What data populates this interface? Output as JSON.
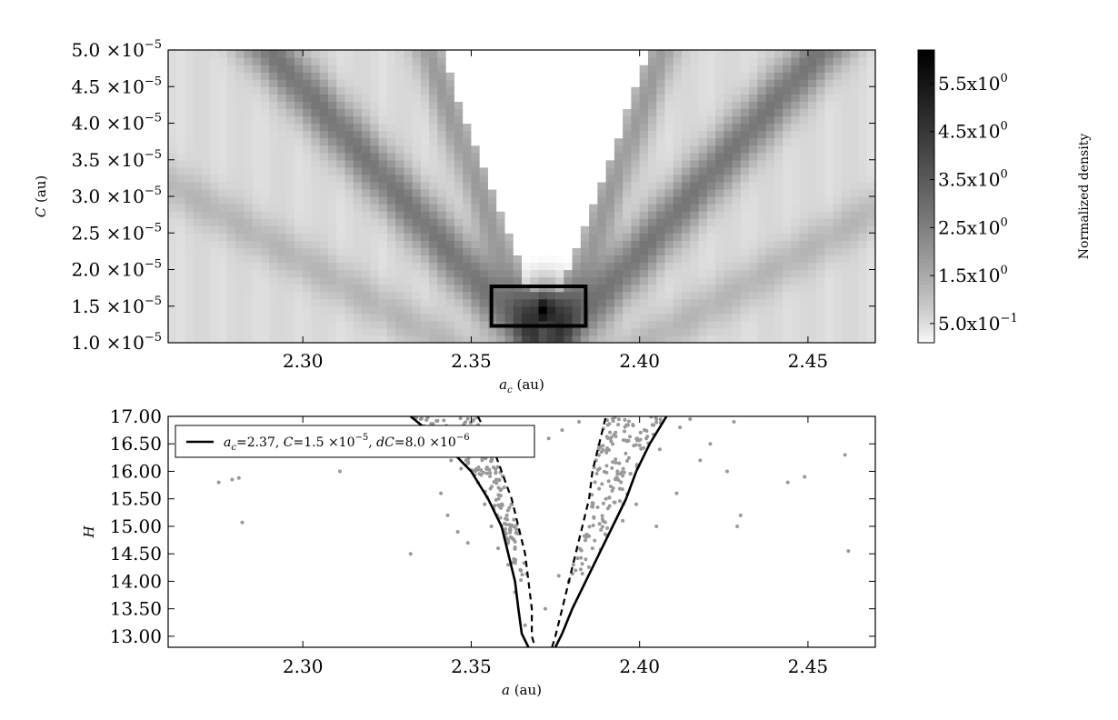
{
  "chart_data": [
    {
      "type": "heatmap",
      "xlabel": "a_c (au)",
      "ylabel": "C (au)",
      "xlim": [
        2.26,
        2.47
      ],
      "ylim": [
        1e-05,
        5e-05
      ],
      "x_ticks": [
        {
          "value": 2.3,
          "label": "2.30"
        },
        {
          "value": 2.35,
          "label": "2.35"
        },
        {
          "value": 2.4,
          "label": "2.40"
        },
        {
          "value": 2.45,
          "label": "2.45"
        }
      ],
      "y_ticks": [
        {
          "value": 1e-05,
          "mantissa": "1.0",
          "exp": "−5"
        },
        {
          "value": 1.5e-05,
          "mantissa": "1.5",
          "exp": "−5"
        },
        {
          "value": 2e-05,
          "mantissa": "2.0",
          "exp": "−5"
        },
        {
          "value": 2.5e-05,
          "mantissa": "2.5",
          "exp": "−5"
        },
        {
          "value": 3e-05,
          "mantissa": "3.0",
          "exp": "−5"
        },
        {
          "value": 3.5e-05,
          "mantissa": "3.5",
          "exp": "−5"
        },
        {
          "value": 4e-05,
          "mantissa": "4.0",
          "exp": "−5"
        },
        {
          "value": 4.5e-05,
          "mantissa": "4.5",
          "exp": "−5"
        },
        {
          "value": 5e-05,
          "mantissa": "5.0",
          "exp": "−5"
        }
      ],
      "colormap": "gray_r",
      "colorbar": {
        "label": "Normalized density",
        "range": [
          0.1,
          6.2
        ],
        "ticks": [
          {
            "value": 0.5,
            "mantissa": "5.0",
            "exp": "−1"
          },
          {
            "value": 1.5,
            "mantissa": "1.5",
            "exp": "0"
          },
          {
            "value": 2.5,
            "mantissa": "2.5",
            "exp": "0"
          },
          {
            "value": 3.5,
            "mantissa": "3.5",
            "exp": "0"
          },
          {
            "value": 4.5,
            "mantissa": "4.5",
            "exp": "0"
          },
          {
            "value": 5.5,
            "mantissa": "5.5",
            "exp": "0"
          }
        ]
      },
      "features": {
        "center_a": 2.372,
        "dense_peak": {
          "a": 2.372,
          "C": 1.45e-05,
          "value": 6.0
        },
        "selection_box": {
          "a": [
            2.356,
            2.384
          ],
          "C": [
            1.23e-05,
            1.77e-05
          ]
        }
      }
    },
    {
      "type": "scatter",
      "xlabel": "a (au)",
      "ylabel": "H",
      "xlim": [
        2.26,
        2.47
      ],
      "ylim": [
        12.8,
        17.0
      ],
      "x_ticks": [
        {
          "value": 2.3,
          "label": "2.30"
        },
        {
          "value": 2.35,
          "label": "2.35"
        },
        {
          "value": 2.4,
          "label": "2.40"
        },
        {
          "value": 2.45,
          "label": "2.45"
        }
      ],
      "y_ticks": [
        {
          "value": 13.0,
          "label": "13.00"
        },
        {
          "value": 13.5,
          "label": "13.50"
        },
        {
          "value": 14.0,
          "label": "14.00"
        },
        {
          "value": 14.5,
          "label": "14.50"
        },
        {
          "value": 15.0,
          "label": "15.00"
        },
        {
          "value": 15.5,
          "label": "15.50"
        },
        {
          "value": 16.0,
          "label": "16.00"
        },
        {
          "value": 16.5,
          "label": "16.50"
        },
        {
          "value": 17.0,
          "label": "17.00"
        }
      ],
      "legend": {
        "position": "upper-left",
        "entry": {
          "sym1": "a",
          "sub1": "c",
          "v1": "=2.37, ",
          "sym2": "C",
          "v2": "=1.5 ×10",
          "e2": "−5",
          "sep": ", ",
          "sym3": "dC",
          "v3": "=8.0 ×10",
          "e3": "−6"
        }
      },
      "curves": {
        "center": 2.37,
        "C": 1.5e-05,
        "dC": 8e-06,
        "solid_left": [
          [
            2.332,
            17.0
          ],
          [
            2.342,
            16.5
          ],
          [
            2.35,
            16.0
          ],
          [
            2.355,
            15.5
          ],
          [
            2.359,
            15.0
          ],
          [
            2.361,
            14.5
          ],
          [
            2.363,
            14.0
          ],
          [
            2.364,
            13.5
          ],
          [
            2.365,
            13.05
          ],
          [
            2.367,
            12.8
          ]
        ],
        "solid_right": [
          [
            2.375,
            12.8
          ],
          [
            2.377,
            13.05
          ],
          [
            2.38,
            13.5
          ],
          [
            2.384,
            14.0
          ],
          [
            2.388,
            14.5
          ],
          [
            2.392,
            15.0
          ],
          [
            2.396,
            15.5
          ],
          [
            2.399,
            16.0
          ],
          [
            2.403,
            16.5
          ],
          [
            2.408,
            17.0
          ]
        ],
        "dashed_left": [
          [
            2.352,
            17.0
          ],
          [
            2.356,
            16.5
          ],
          [
            2.359,
            16.0
          ],
          [
            2.362,
            15.5
          ],
          [
            2.364,
            15.0
          ],
          [
            2.366,
            14.5
          ],
          [
            2.367,
            14.0
          ],
          [
            2.368,
            13.5
          ],
          [
            2.368,
            13.0
          ],
          [
            2.369,
            12.8
          ]
        ],
        "dashed_right": [
          [
            2.374,
            12.8
          ],
          [
            2.375,
            13.0
          ],
          [
            2.377,
            13.5
          ],
          [
            2.379,
            14.0
          ],
          [
            2.381,
            14.5
          ],
          [
            2.383,
            15.0
          ],
          [
            2.385,
            15.5
          ],
          [
            2.386,
            16.0
          ],
          [
            2.388,
            16.5
          ],
          [
            2.39,
            17.0
          ]
        ]
      },
      "points": [
        [
          2.275,
          15.8
        ],
        [
          2.279,
          15.85
        ],
        [
          2.281,
          15.88
        ],
        [
          2.282,
          15.07
        ],
        [
          2.311,
          16.0
        ],
        [
          2.332,
          14.5
        ],
        [
          2.339,
          16.3
        ],
        [
          2.341,
          15.6
        ],
        [
          2.343,
          15.2
        ],
        [
          2.346,
          14.9
        ],
        [
          2.349,
          14.7
        ],
        [
          2.352,
          15.8
        ],
        [
          2.354,
          15.4
        ],
        [
          2.356,
          15.0
        ],
        [
          2.358,
          14.6
        ],
        [
          2.361,
          14.3
        ],
        [
          2.363,
          13.8
        ],
        [
          2.366,
          13.2
        ],
        [
          2.372,
          13.5
        ],
        [
          2.376,
          14.1
        ],
        [
          2.379,
          14.0
        ],
        [
          2.381,
          14.2
        ],
        [
          2.384,
          14.4
        ],
        [
          2.386,
          14.6
        ],
        [
          2.39,
          15.5
        ],
        [
          2.395,
          15.1
        ],
        [
          2.399,
          15.4
        ],
        [
          2.405,
          15.0
        ],
        [
          2.411,
          15.6
        ],
        [
          2.418,
          16.2
        ],
        [
          2.421,
          16.5
        ],
        [
          2.426,
          16.0
        ],
        [
          2.428,
          16.9
        ],
        [
          2.429,
          15.0
        ],
        [
          2.43,
          15.2
        ],
        [
          2.444,
          15.8
        ],
        [
          2.449,
          15.9
        ],
        [
          2.461,
          16.3
        ],
        [
          2.462,
          14.55
        ],
        [
          2.344,
          16.2
        ],
        [
          2.347,
          16.05
        ],
        [
          2.351,
          16.4
        ],
        [
          2.358,
          16.6
        ],
        [
          2.362,
          16.8
        ],
        [
          2.368,
          16.3
        ],
        [
          2.373,
          16.6
        ],
        [
          2.377,
          16.75
        ],
        [
          2.382,
          16.9
        ],
        [
          2.392,
          16.95
        ],
        [
          2.398,
          16.85
        ],
        [
          2.402,
          16.6
        ],
        [
          2.406,
          16.4
        ],
        [
          2.412,
          16.8
        ],
        [
          2.415,
          16.95
        ],
        [
          2.335,
          16.95
        ],
        [
          2.34,
          16.92
        ]
      ]
    }
  ]
}
